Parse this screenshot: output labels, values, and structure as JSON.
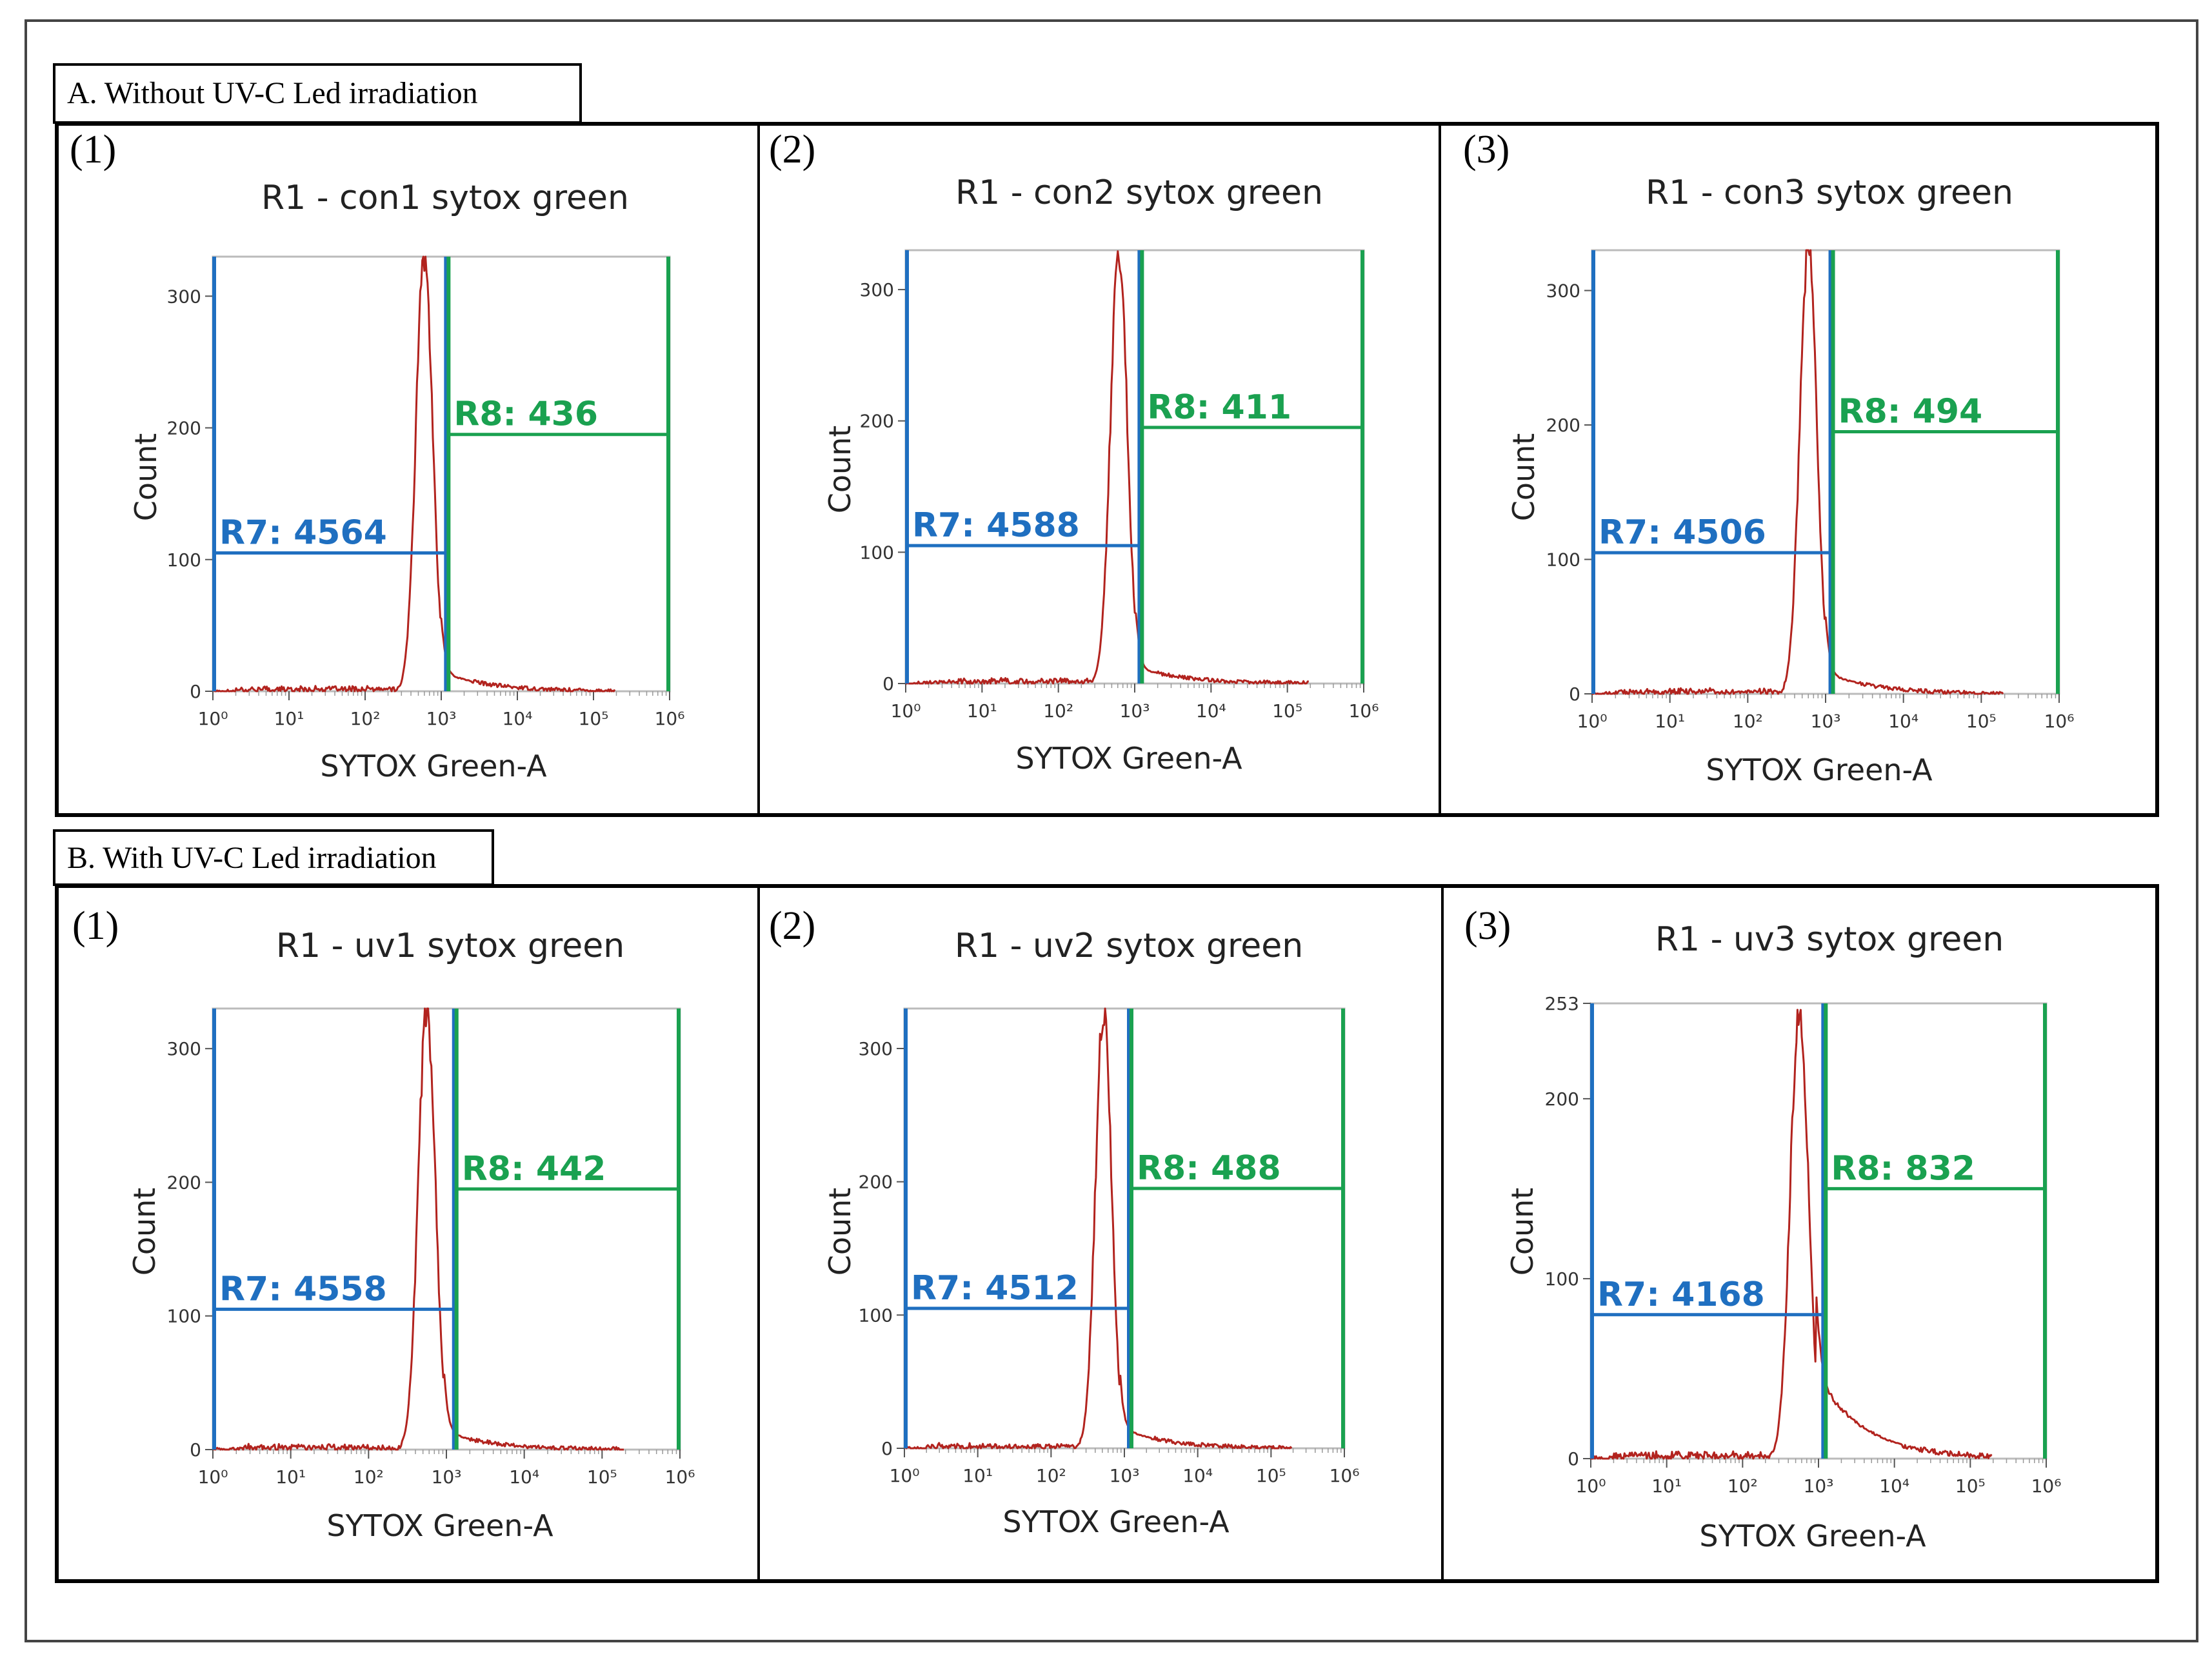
{
  "sections": [
    {
      "label": "A. Without UV-C Led irradiation"
    },
    {
      "label": "B. With UV-C Led irradiation"
    }
  ],
  "colors": {
    "histogram": "#b2231e",
    "r7_gate": "#1f6fc0",
    "r8_gate": "#1aa150",
    "frame": "#000000",
    "axis_text": "#333333"
  },
  "chart_data": [
    {
      "type": "line",
      "section": 0,
      "panel_label": "(1)",
      "title": "R1 - con1 sytox green",
      "xlabel": "SYTOX Green-A",
      "ylabel": "Count",
      "x_scale": "log",
      "xlim": [
        1,
        1000000
      ],
      "ylim": [
        0,
        330
      ],
      "x_ticks": [
        "10⁰",
        "10¹",
        "10²",
        "10³",
        "10⁴",
        "10⁵",
        "10⁶"
      ],
      "y_ticks": [
        0,
        100,
        200,
        300
      ],
      "y_tick_labels": [
        "0",
        "100",
        "200",
        "300"
      ],
      "peak_x": 600,
      "peak_y": 330,
      "peak_width": 0.11,
      "tail_level": 14,
      "gates": [
        {
          "name": "R7",
          "label": "R7: 4564",
          "x_range": [
            1,
            1200
          ],
          "y": 105
        },
        {
          "name": "R8",
          "label": "R8: 436",
          "x_range": [
            1200,
            1000000
          ],
          "y": 195
        }
      ]
    },
    {
      "type": "line",
      "section": 0,
      "panel_label": "(2)",
      "title": "R1 - con2 sytox green",
      "xlabel": "SYTOX Green-A",
      "ylabel": "Count",
      "x_scale": "log",
      "xlim": [
        1,
        1000000
      ],
      "ylim": [
        0,
        330
      ],
      "x_ticks": [
        "10⁰",
        "10¹",
        "10²",
        "10³",
        "10⁴",
        "10⁵",
        "10⁶"
      ],
      "y_ticks": [
        0,
        100,
        200,
        300
      ],
      "y_tick_labels": [
        "0",
        "100",
        "200",
        "300"
      ],
      "peak_x": 620,
      "peak_y": 330,
      "peak_width": 0.11,
      "tail_level": 12,
      "gates": [
        {
          "name": "R7",
          "label": "R7: 4588",
          "x_range": [
            1,
            1200
          ],
          "y": 105
        },
        {
          "name": "R8",
          "label": "R8: 411",
          "x_range": [
            1200,
            1000000
          ],
          "y": 195
        }
      ]
    },
    {
      "type": "line",
      "section": 0,
      "panel_label": "(3)",
      "title": "R1 - con3 sytox green",
      "xlabel": "SYTOX Green-A",
      "ylabel": "Count",
      "x_scale": "log",
      "xlim": [
        1,
        1000000
      ],
      "ylim": [
        0,
        330
      ],
      "x_ticks": [
        "10⁰",
        "10¹",
        "10²",
        "10³",
        "10⁴",
        "10⁵",
        "10⁶"
      ],
      "y_ticks": [
        0,
        100,
        200,
        300
      ],
      "y_tick_labels": [
        "0",
        "100",
        "200",
        "300"
      ],
      "peak_x": 600,
      "peak_y": 330,
      "peak_width": 0.11,
      "tail_level": 15,
      "gates": [
        {
          "name": "R7",
          "label": "R7: 4506",
          "x_range": [
            1,
            1200
          ],
          "y": 105
        },
        {
          "name": "R8",
          "label": "R8: 494",
          "x_range": [
            1200,
            1000000
          ],
          "y": 195
        }
      ]
    },
    {
      "type": "line",
      "section": 1,
      "panel_label": "(1)",
      "title": "R1 - uv1 sytox green",
      "xlabel": "SYTOX Green-A",
      "ylabel": "Count",
      "x_scale": "log",
      "xlim": [
        1,
        1000000
      ],
      "ylim": [
        0,
        330
      ],
      "x_ticks": [
        "10⁰",
        "10¹",
        "10²",
        "10³",
        "10⁴",
        "10⁵",
        "10⁶"
      ],
      "y_ticks": [
        0,
        100,
        200,
        300
      ],
      "y_tick_labels": [
        "0",
        "100",
        "200",
        "300"
      ],
      "peak_x": 560,
      "peak_y": 330,
      "peak_width": 0.11,
      "tail_level": 13,
      "gates": [
        {
          "name": "R7",
          "label": "R7: 4558",
          "x_range": [
            1,
            1300
          ],
          "y": 105
        },
        {
          "name": "R8",
          "label": "R8: 442",
          "x_range": [
            1300,
            1000000
          ],
          "y": 195
        }
      ]
    },
    {
      "type": "line",
      "section": 1,
      "panel_label": "(2)",
      "title": "R1 - uv2 sytox green",
      "xlabel": "SYTOX Green-A",
      "ylabel": "Count",
      "x_scale": "log",
      "xlim": [
        1,
        1000000
      ],
      "ylim": [
        0,
        330
      ],
      "x_ticks": [
        "10⁰",
        "10¹",
        "10²",
        "10³",
        "10⁴",
        "10⁵",
        "10⁶"
      ],
      "y_ticks": [
        0,
        100,
        200,
        300
      ],
      "y_tick_labels": [
        "0",
        "100",
        "200",
        "300"
      ],
      "peak_x": 520,
      "peak_y": 330,
      "peak_width": 0.11,
      "tail_level": 15,
      "gates": [
        {
          "name": "R7",
          "label": "R7: 4512",
          "x_range": [
            1,
            1200
          ],
          "y": 105
        },
        {
          "name": "R8",
          "label": "R8: 488",
          "x_range": [
            1200,
            1000000
          ],
          "y": 195
        }
      ]
    },
    {
      "type": "line",
      "section": 1,
      "panel_label": "(3)",
      "title": "R1 - uv3 sytox green",
      "xlabel": "SYTOX Green-A",
      "ylabel": "Count",
      "x_scale": "log",
      "xlim": [
        1,
        1000000
      ],
      "ylim": [
        0,
        253
      ],
      "x_ticks": [
        "10⁰",
        "10¹",
        "10²",
        "10³",
        "10⁴",
        "10⁵",
        "10⁶"
      ],
      "y_ticks": [
        0,
        100,
        200,
        253
      ],
      "y_tick_labels": [
        "0",
        "100",
        "200",
        "253"
      ],
      "peak_x": 560,
      "peak_y": 250,
      "peak_width": 0.12,
      "tail_level": 45,
      "gates": [
        {
          "name": "R7",
          "label": "R7: 4168",
          "x_range": [
            1,
            1200
          ],
          "y": 80
        },
        {
          "name": "R8",
          "label": "R8: 832",
          "x_range": [
            1200,
            1000000
          ],
          "y": 150
        }
      ]
    }
  ]
}
